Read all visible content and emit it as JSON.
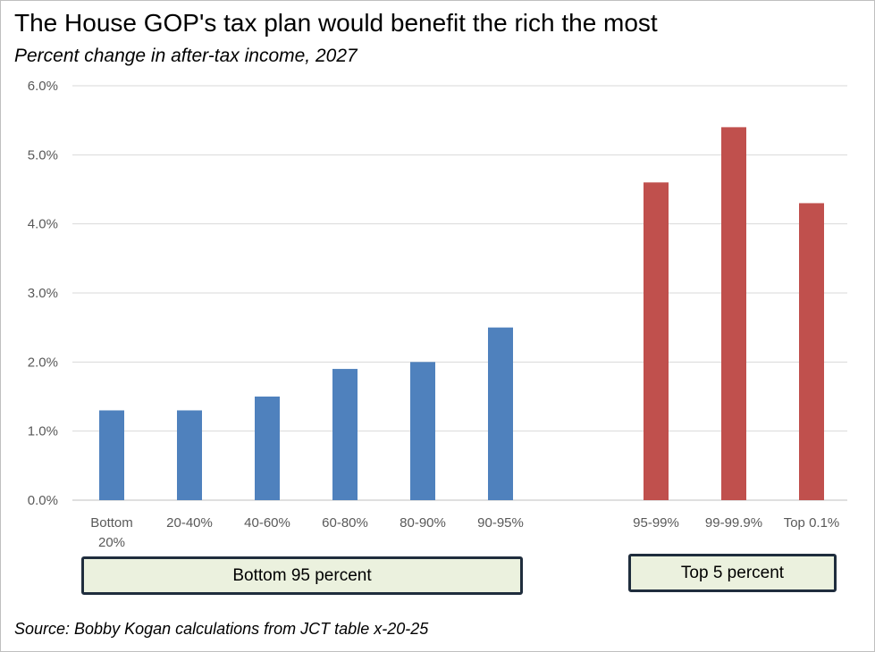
{
  "header": {
    "title": "The House GOP's tax plan would benefit the rich the most",
    "subtitle": "Percent change in after-tax income, 2027"
  },
  "chart_data": {
    "type": "bar",
    "title": "The House GOP's tax plan would benefit the rich the most",
    "subtitle": "Percent change in after-tax income, 2027",
    "xlabel": "",
    "ylabel": "",
    "ylim": [
      0,
      6
    ],
    "y_ticks": [
      "0.0%",
      "1.0%",
      "2.0%",
      "3.0%",
      "4.0%",
      "5.0%",
      "6.0%"
    ],
    "grid": "horizontal",
    "legend": "none",
    "categories": [
      [
        "Bottom",
        "20%"
      ],
      [
        "20-40%"
      ],
      [
        "40-60%"
      ],
      [
        "60-80%"
      ],
      [
        "80-90%"
      ],
      [
        "90-95%"
      ],
      [
        "95-99%"
      ],
      [
        "99-99.9%"
      ],
      [
        "Top 0.1%"
      ]
    ],
    "values": [
      1.3,
      1.3,
      1.5,
      1.9,
      2.0,
      2.5,
      4.6,
      5.4,
      4.3
    ],
    "groups": [
      {
        "label": "Bottom 95 percent",
        "indices": [
          0,
          1,
          2,
          3,
          4,
          5
        ],
        "color": "#4f81bd"
      },
      {
        "label": "Top 5 percent",
        "indices": [
          6,
          7,
          8
        ],
        "color": "#c0504d"
      }
    ]
  },
  "footer": {
    "source": "Source: Bobby Kogan calculations from JCT table x-20-25"
  }
}
